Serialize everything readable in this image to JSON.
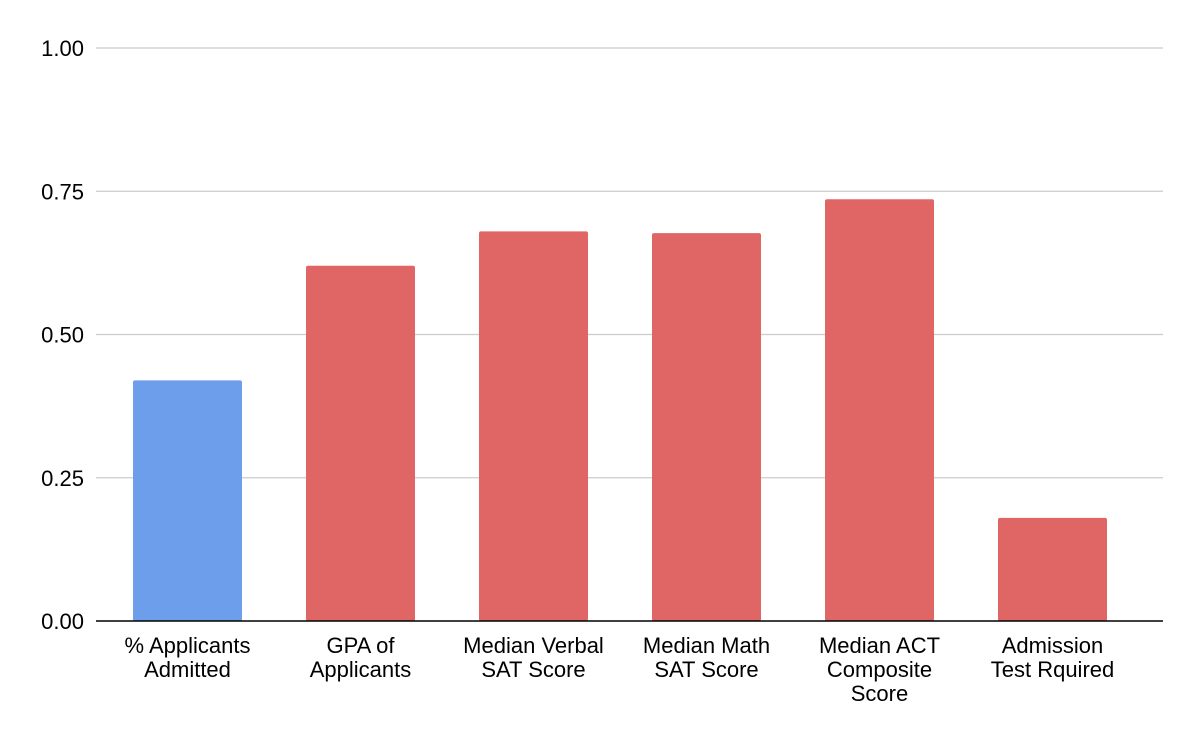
{
  "chart_data": {
    "type": "bar",
    "title": "",
    "xlabel": "",
    "ylabel": "",
    "ylim": [
      0,
      1
    ],
    "yticks": [
      "0.00",
      "0.25",
      "0.50",
      "0.75",
      "1.00"
    ],
    "grid": true,
    "legend": "none",
    "categories": [
      [
        "% Applicants",
        "Admitted"
      ],
      [
        "GPA of",
        "Applicants"
      ],
      [
        "Median Verbal",
        "SAT Score"
      ],
      [
        "Median Math",
        "SAT Score"
      ],
      [
        "Median ACT",
        "Composite",
        "Score"
      ],
      [
        "Admission",
        "Test Rquired"
      ]
    ],
    "values": [
      0.42,
      0.62,
      0.68,
      0.677,
      0.736,
      0.18
    ],
    "colors": [
      "#6d9eeb",
      "#e06666",
      "#e06666",
      "#e06666",
      "#e06666",
      "#e06666"
    ],
    "grid_color": "#cccccc",
    "axis_color": "#000000"
  }
}
